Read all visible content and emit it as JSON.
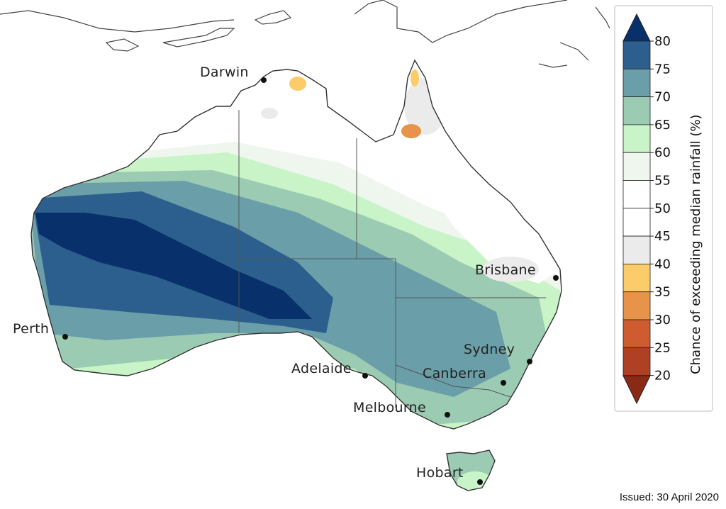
{
  "map": {
    "cities": [
      {
        "id": "darwin",
        "label": "Darwin"
      },
      {
        "id": "brisbane",
        "label": "Brisbane"
      },
      {
        "id": "perth",
        "label": "Perth"
      },
      {
        "id": "sydney",
        "label": "Sydney"
      },
      {
        "id": "canberra",
        "label": "Canberra"
      },
      {
        "id": "adelaide",
        "label": "Adelaide"
      },
      {
        "id": "melbourne",
        "label": "Melbourne"
      },
      {
        "id": "hobart",
        "label": "Hobart"
      }
    ]
  },
  "legend": {
    "title": "Chance of exceeding median rainfall (%)",
    "tick_labels": [
      "80",
      "75",
      "70",
      "65",
      "60",
      "55",
      "50",
      "45",
      "40",
      "35",
      "30",
      "25",
      "20"
    ],
    "colors": {
      "80_plus": "#08306b",
      "75_80": "#2c5f8e",
      "70_75": "#6a9ea8",
      "65_70": "#9ccbb4",
      "60_65": "#c8f4c8",
      "55_60": "#eef6ee",
      "50_55": "#ffffff",
      "45_50": "#ffffff",
      "40_45": "#ecebeb",
      "35_40": "#fccc6a",
      "30_35": "#e8934a",
      "25_30": "#cf5b30",
      "20_25": "#b04024",
      "below_20": "#8a2a16"
    }
  },
  "footer": {
    "issued": "Issued: 30 April 2020"
  }
}
